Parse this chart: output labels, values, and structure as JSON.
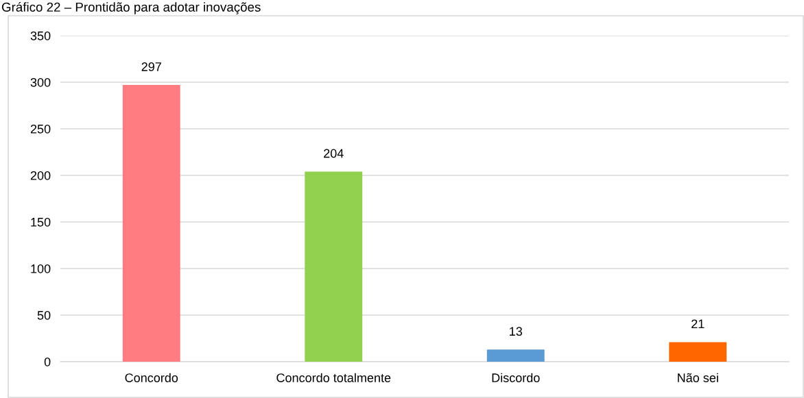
{
  "chart_data": {
    "type": "bar",
    "title": "Gráfico 22 – Prontidão para adotar inovações",
    "categories": [
      "Concordo",
      "Concordo totalmente",
      "Discordo",
      "Não sei"
    ],
    "values": [
      297,
      204,
      13,
      21
    ],
    "colors": [
      "#ff7c80",
      "#92d050",
      "#5b9bd5",
      "#ff6600"
    ],
    "ylim": [
      0,
      350
    ],
    "yticks": [
      0,
      50,
      100,
      150,
      200,
      250,
      300,
      350
    ],
    "grid": "y",
    "data_labels": true,
    "legend": false
  }
}
